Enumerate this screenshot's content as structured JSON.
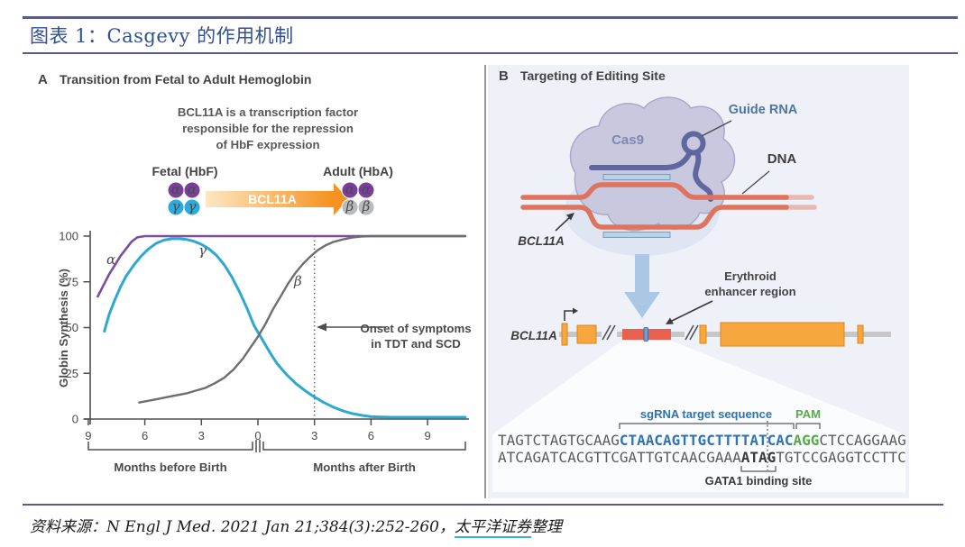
{
  "header": {
    "title": "图表 1：Casgevy 的作用机制"
  },
  "footer": {
    "source_label": "资料来源：",
    "source_ref": "N Engl J Med. 2021 Jan 21;384(3):252-260，",
    "source_org": "太平洋证券",
    "source_suffix": "整理"
  },
  "panel_a": {
    "label": "A",
    "title": "Transition from Fetal to Adult Hemoglobin",
    "caption_line1": "BCL11A is a transcription factor",
    "caption_line2": "responsible for the repression",
    "caption_line3": "of HbF expression",
    "fetal_label": "Fetal (HbF)",
    "adult_label": "Adult (HbA)",
    "arrow_label": "BCL11A",
    "fetal_subunits": [
      "α",
      "α",
      "γ",
      "γ"
    ],
    "adult_subunits": [
      "α",
      "α",
      "β",
      "β"
    ],
    "colors": {
      "alpha_circle": "#7a3f9b",
      "gamma_circle": "#29abe0",
      "beta_circle": "#b9babd",
      "arrow_orange": "#f6921e"
    }
  },
  "chart_data": {
    "type": "line",
    "title": "",
    "ylabel": "Globin Synthesis (%)",
    "xlabel_left": "Months before Birth",
    "xlabel_right": "Months after Birth",
    "x_tick_months": [
      -9,
      -6,
      -3,
      0,
      3,
      6,
      9
    ],
    "x_ticks": [
      "9",
      "6",
      "3",
      "0",
      "3",
      "6",
      "9"
    ],
    "y_ticks": [
      100,
      75,
      50,
      25,
      0
    ],
    "xlim": [
      -9.3,
      11
    ],
    "ylim": [
      0,
      100
    ],
    "grid": false,
    "annotation": {
      "line1": "Onset of symptoms",
      "line2": "in TDT and SCD",
      "x": 3
    },
    "series": [
      {
        "name": "α",
        "color": "#7a4e9c",
        "width": 2.6,
        "points": [
          [
            -8.5,
            67
          ],
          [
            -8.2,
            73
          ],
          [
            -7.9,
            79
          ],
          [
            -7.6,
            84
          ],
          [
            -7.3,
            89
          ],
          [
            -7.0,
            93
          ],
          [
            -6.7,
            97
          ],
          [
            -6.4,
            99.3
          ],
          [
            -6.0,
            100
          ],
          [
            -5,
            100
          ],
          [
            -3,
            100
          ],
          [
            0,
            100
          ],
          [
            4,
            100
          ],
          [
            8,
            100
          ],
          [
            11,
            100
          ]
        ]
      },
      {
        "name": "γ",
        "color": "#2fa8d0",
        "width": 3,
        "points": [
          [
            -8.15,
            48
          ],
          [
            -7.9,
            57
          ],
          [
            -7.6,
            65
          ],
          [
            -7.3,
            72
          ],
          [
            -7.0,
            78
          ],
          [
            -6.6,
            84
          ],
          [
            -6.2,
            89
          ],
          [
            -5.8,
            93
          ],
          [
            -5.4,
            96
          ],
          [
            -5.0,
            97.8
          ],
          [
            -4.6,
            98.5
          ],
          [
            -4.2,
            98.6
          ],
          [
            -3.8,
            98.2
          ],
          [
            -3.4,
            97.2
          ],
          [
            -3.0,
            95.5
          ],
          [
            -2.6,
            93
          ],
          [
            -2.2,
            89.5
          ],
          [
            -1.8,
            84.5
          ],
          [
            -1.4,
            78
          ],
          [
            -1.0,
            70
          ],
          [
            -0.6,
            61
          ],
          [
            -0.2,
            51
          ],
          [
            0.2,
            44
          ],
          [
            0.6,
            37
          ],
          [
            1.0,
            30.5
          ],
          [
            1.5,
            24.5
          ],
          [
            2.0,
            19.5
          ],
          [
            2.5,
            15.5
          ],
          [
            3.0,
            12
          ],
          [
            3.5,
            9
          ],
          [
            4.0,
            6.5
          ],
          [
            4.5,
            4.5
          ],
          [
            5.0,
            3
          ],
          [
            5.5,
            2
          ],
          [
            6.0,
            1.3
          ],
          [
            7,
            1
          ],
          [
            8,
            1
          ],
          [
            9,
            1
          ],
          [
            10,
            1
          ],
          [
            11,
            1
          ]
        ]
      },
      {
        "name": "β",
        "color": "#6d6e71",
        "width": 2.4,
        "points": [
          [
            -6.3,
            9
          ],
          [
            -5.8,
            10
          ],
          [
            -5.3,
            11
          ],
          [
            -4.8,
            12
          ],
          [
            -4.3,
            13
          ],
          [
            -3.8,
            14
          ],
          [
            -3.3,
            15.5
          ],
          [
            -2.8,
            17
          ],
          [
            -2.3,
            19.5
          ],
          [
            -1.8,
            22.5
          ],
          [
            -1.3,
            27
          ],
          [
            -0.8,
            33
          ],
          [
            -0.4,
            39
          ],
          [
            0,
            45
          ],
          [
            0.4,
            52
          ],
          [
            0.8,
            60
          ],
          [
            1.2,
            67
          ],
          [
            1.6,
            74
          ],
          [
            2.0,
            80
          ],
          [
            2.4,
            85
          ],
          [
            2.8,
            89
          ],
          [
            3.2,
            92.5
          ],
          [
            3.6,
            95
          ],
          [
            4.0,
            96.8
          ],
          [
            4.5,
            98.2
          ],
          [
            5.0,
            99.2
          ],
          [
            5.5,
            99.8
          ],
          [
            6.0,
            100
          ],
          [
            7,
            100
          ],
          [
            8,
            100
          ],
          [
            9,
            100
          ],
          [
            11,
            100
          ]
        ]
      }
    ]
  },
  "panel_b": {
    "label": "B",
    "title": "Targeting of Editing Site",
    "cas9_label": "Cas9",
    "guide_rna_label": "Guide RNA",
    "dna_label": "DNA",
    "bcl11a_label": "BCL11A",
    "erythroid_line1": "Erythroid",
    "erythroid_line2": "enhancer region",
    "gene_label": "BCL11A",
    "sgrna_label": "sgRNA target sequence",
    "pam_label": "PAM",
    "gata1_label": "GATA1 binding site",
    "sequence": {
      "top_pre": "TAGTCTAGTGCAAG",
      "top_sgrna": "CTAACAGTTGCTTTTATCAC",
      "top_pam": "AGG",
      "top_post": "CTCCAGGAAG",
      "bottom_pre": "ATCAGATCACGTTCGATTGTCAACGAAA",
      "bottom_gata1": "ATAG",
      "bottom_post": "TGTCCGAGGTCCTTC"
    },
    "colors": {
      "panel_bg": "#eff1f9",
      "dna": "#df735e",
      "guide_rna": "#62669f",
      "cas9_body": "#c8c9de",
      "exon_orange": "#f7a73e",
      "enhancer_red": "#e8614e",
      "sgrna_blue": "#2e74b5",
      "pam_green": "#57ab49"
    }
  }
}
